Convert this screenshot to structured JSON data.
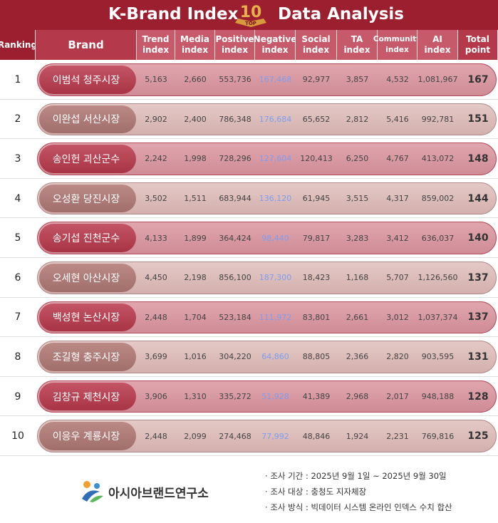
{
  "header": {
    "title_left": "K-Brand Index",
    "badge_number": "10",
    "badge_text": "TOP",
    "title_right": "Data Analysis"
  },
  "table": {
    "columns": [
      "Ranking",
      "Brand",
      "Trend index",
      "Media index",
      "Positive index",
      "Negative index",
      "Social index",
      "TA index",
      "Community index",
      "AI index",
      "Total point"
    ],
    "rows": [
      [
        "1",
        "이범석 청주시장",
        "5,163",
        "2,660",
        "553,736",
        "167,468",
        "92,977",
        "3,857",
        "4,532",
        "1,081,967",
        "167"
      ],
      [
        "2",
        "이완섭 서산시장",
        "2,902",
        "2,400",
        "786,348",
        "176,684",
        "65,652",
        "2,812",
        "5,416",
        "992,781",
        "151"
      ],
      [
        "3",
        "송인헌 괴산군수",
        "2,242",
        "1,998",
        "728,296",
        "127,604",
        "120,413",
        "6,250",
        "4,767",
        "413,072",
        "148"
      ],
      [
        "4",
        "오성환 당진시장",
        "3,502",
        "1,511",
        "683,944",
        "136,120",
        "61,945",
        "3,515",
        "4,317",
        "859,002",
        "144"
      ],
      [
        "5",
        "송기섭 진천군수",
        "4,133",
        "1,899",
        "364,424",
        "98,440",
        "79,817",
        "3,283",
        "3,412",
        "636,037",
        "140"
      ],
      [
        "6",
        "오세현 아산시장",
        "4,450",
        "2,198",
        "856,100",
        "187,300",
        "18,423",
        "1,168",
        "5,707",
        "1,126,560",
        "137"
      ],
      [
        "7",
        "백성현 논산시장",
        "2,448",
        "1,704",
        "523,184",
        "111,972",
        "83,801",
        "2,661",
        "3,012",
        "1,037,374",
        "137"
      ],
      [
        "8",
        "조길형 충주시장",
        "3,699",
        "1,016",
        "304,220",
        "64,860",
        "88,805",
        "2,366",
        "2,820",
        "903,595",
        "131"
      ],
      [
        "9",
        "김창규 제천시장",
        "3,906",
        "1,310",
        "335,272",
        "51,928",
        "41,389",
        "2,968",
        "2,017",
        "948,188",
        "128"
      ],
      [
        "10",
        "이응우 계룡시장",
        "2,448",
        "2,099",
        "274,468",
        "77,992",
        "48,846",
        "1,924",
        "2,231",
        "769,816",
        "125"
      ]
    ]
  },
  "footer": {
    "logo_text": "아시아브랜드연구소",
    "notes": [
      "조사 기간 : 2025년 9월 1일 ~ 2025년 9월 30일",
      "조사 대상 : 충청도 지자체장",
      "조사 방식 : 빅데이터 시스템 온라인 인덱스 수치 합산"
    ]
  }
}
